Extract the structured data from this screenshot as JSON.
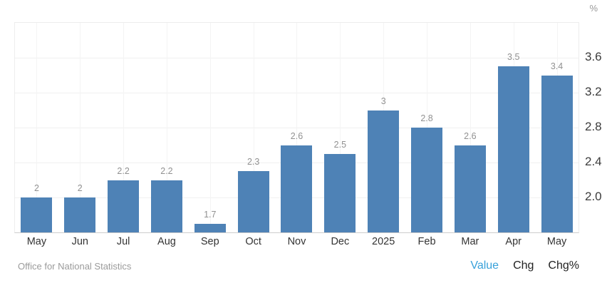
{
  "header": {
    "unit_label": "%"
  },
  "chart_data": {
    "type": "bar",
    "title": "",
    "xlabel": "",
    "ylabel": "%",
    "categories": [
      "May",
      "Jun",
      "Jul",
      "Aug",
      "Sep",
      "Oct",
      "Nov",
      "Dec",
      "2025",
      "Feb",
      "Mar",
      "Apr",
      "May"
    ],
    "values": [
      2,
      2,
      2.2,
      2.2,
      1.7,
      2.3,
      2.6,
      2.5,
      3,
      2.8,
      2.6,
      3.5,
      3.4
    ],
    "data_labels": [
      "2",
      "2",
      "2.2",
      "2.2",
      "1.7",
      "2.3",
      "2.6",
      "2.5",
      "3",
      "2.8",
      "2.6",
      "3.5",
      "3.4"
    ],
    "ylim": [
      1.6,
      4.0
    ],
    "y_ticks": [
      2.0,
      2.4,
      2.8,
      3.2,
      3.6
    ],
    "y_tick_labels": [
      "2.0",
      "2.4",
      "2.8",
      "3.2",
      "3.6"
    ],
    "grid": true,
    "legend_position": "none",
    "bar_color": "#4e82b6"
  },
  "footer": {
    "source": "Office for National Statistics",
    "view_tabs": [
      {
        "label": "Value",
        "active": true
      },
      {
        "label": "Chg",
        "active": false
      },
      {
        "label": "Chg%",
        "active": false
      }
    ]
  },
  "colors": {
    "bar": "#4e82b6",
    "active_tab": "#38a1da",
    "tab": "#222222",
    "data_label": "#919191",
    "axis_label": "#3c3c3c",
    "category_label": "#333333",
    "source_text": "#9b9b9b",
    "gridline": "#f0f0f0",
    "axis_line": "#cccccc"
  }
}
